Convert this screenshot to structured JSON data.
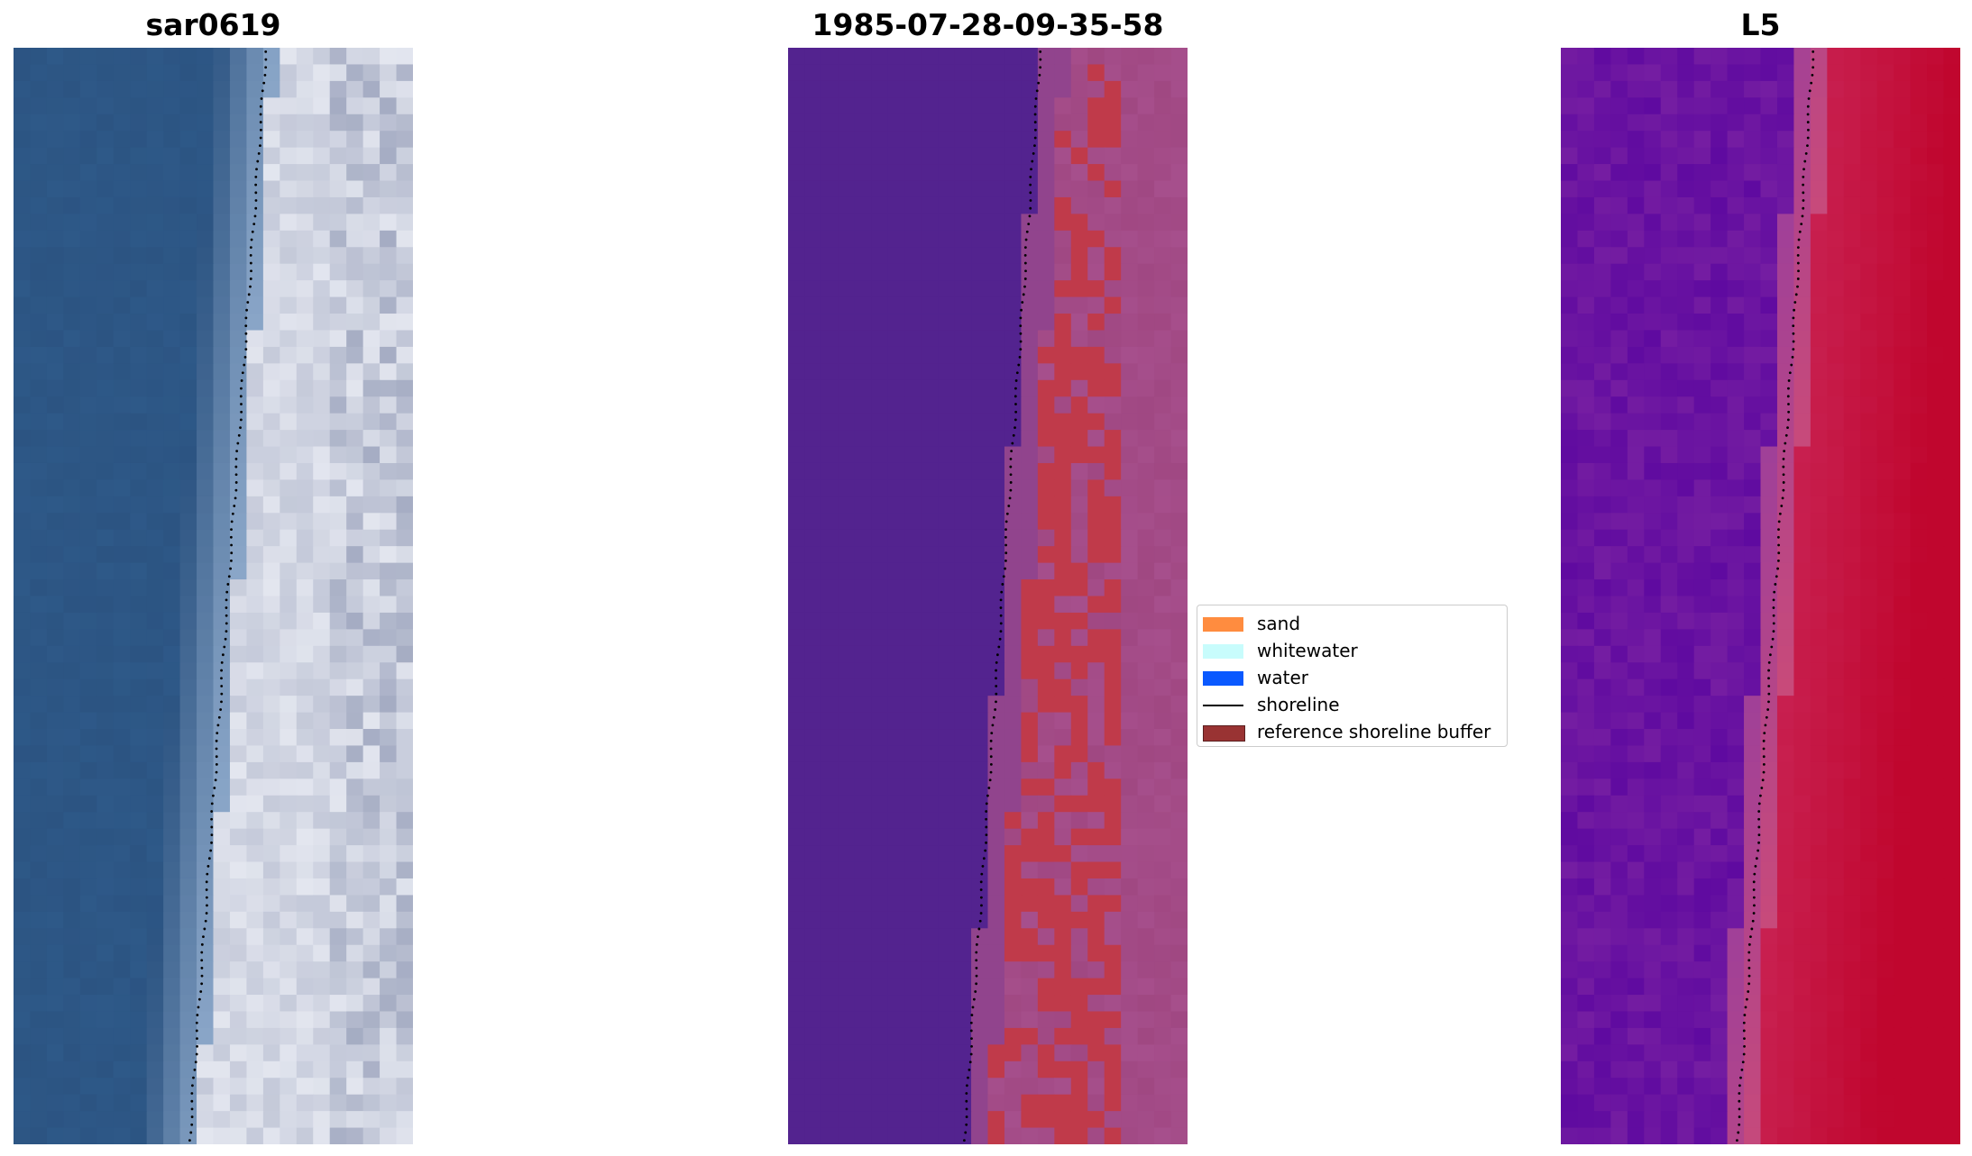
{
  "figure": {
    "panels": [
      {
        "title": "sar0619",
        "kind": "rgb"
      },
      {
        "title": "1985-07-28-09-35-58",
        "kind": "classification"
      },
      {
        "title": "L5",
        "kind": "index"
      }
    ]
  },
  "legend": {
    "entries": [
      {
        "label": "sand",
        "type": "patch",
        "color": "#ff8c3f"
      },
      {
        "label": "whitewater",
        "type": "patch",
        "color": "#c8fcfc"
      },
      {
        "label": "water",
        "type": "patch",
        "color": "#0a59ff"
      },
      {
        "label": "shoreline",
        "type": "line",
        "color": "#000000"
      },
      {
        "label": "reference shoreline buffer",
        "type": "patch",
        "color": "#993333",
        "border": "#5a1f1f"
      }
    ]
  },
  "colors": {
    "rgb_water": "#2c5482",
    "rgb_sand_light": "#e3e6ef",
    "class_water": "#53238f",
    "class_buffer_red": "#c03a4a",
    "class_land_pink": "#a64f8c",
    "index_low": "#5f0aa0",
    "index_high": "#c0062e"
  }
}
